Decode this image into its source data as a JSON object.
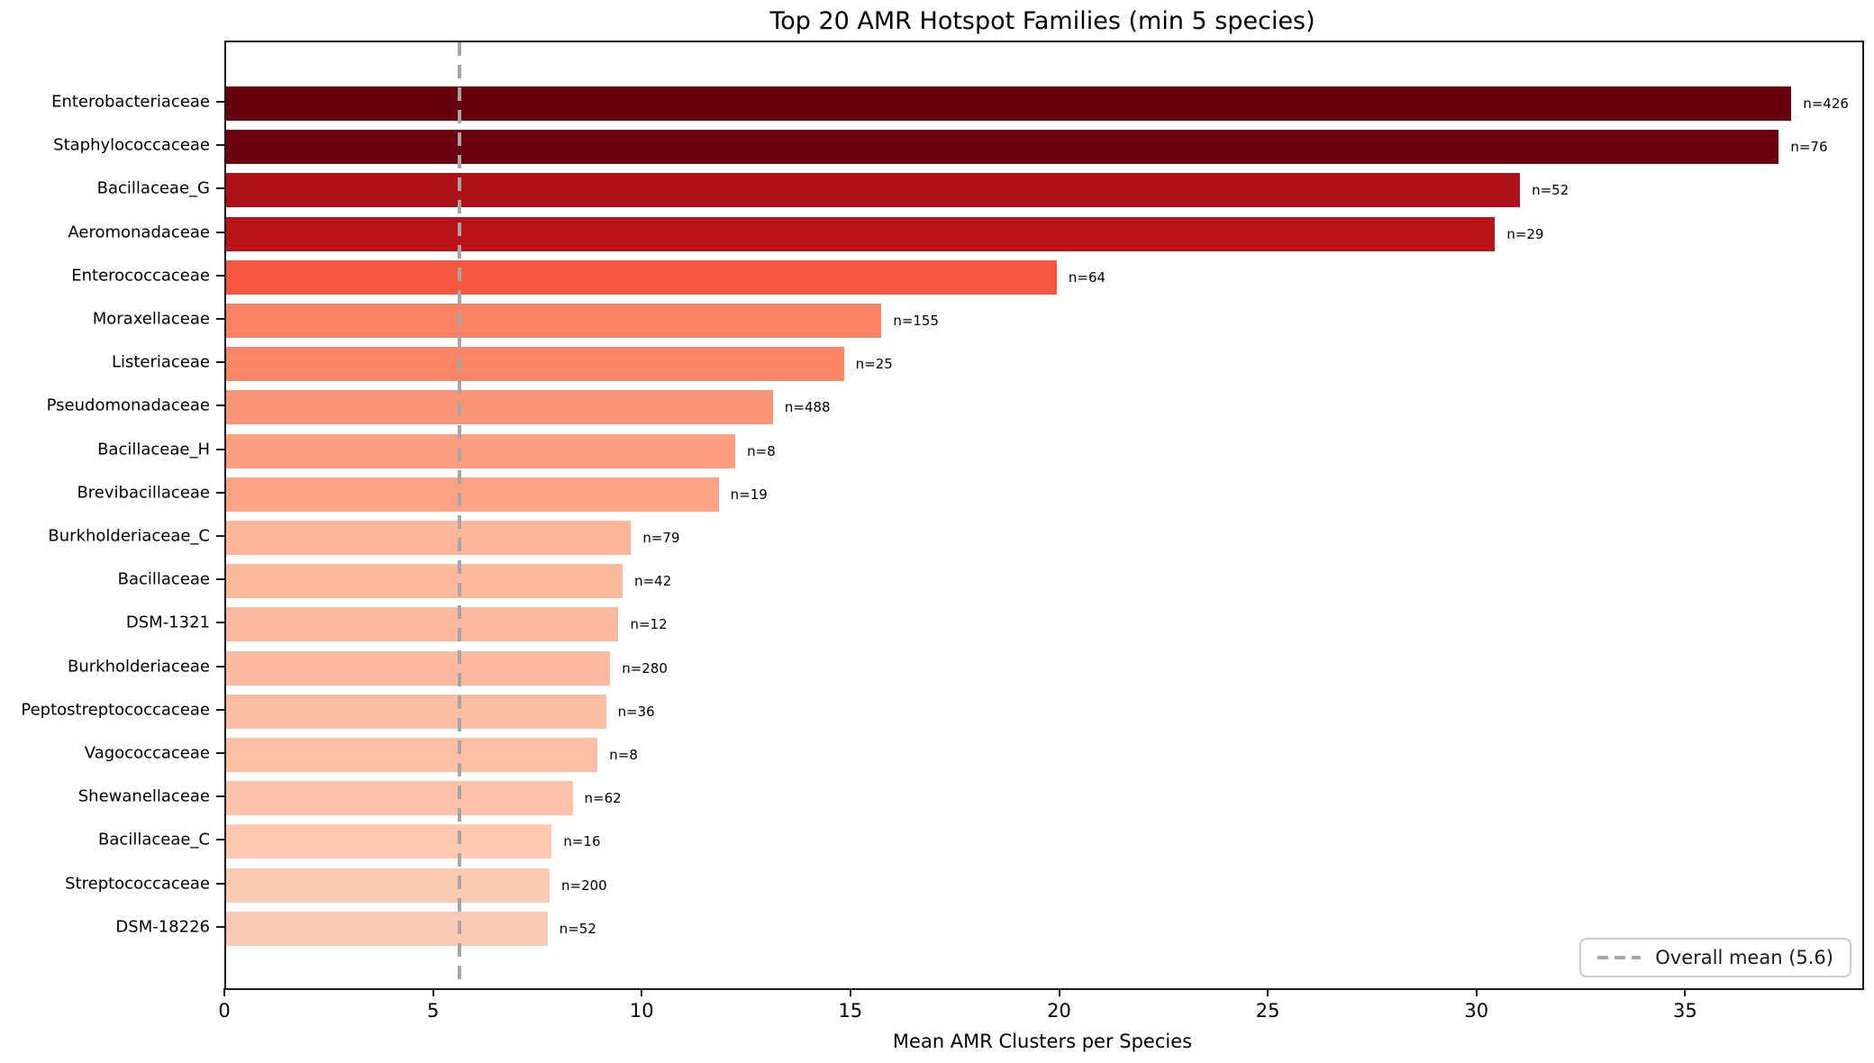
{
  "chart_data": {
    "type": "bar",
    "orientation": "horizontal",
    "title": "Top 20 AMR Hotspot Families (min 5 species)",
    "xlabel": "Mean AMR Clusters per Species",
    "ylabel": "",
    "xlim": [
      0,
      39.2
    ],
    "x_ticks": [
      0,
      5,
      10,
      15,
      20,
      25,
      30,
      35
    ],
    "grid": false,
    "legend_position": "lower right",
    "mean_line": {
      "value": 5.6,
      "label": "Overall mean (5.6)",
      "color": "#a6a6a6",
      "style": "dashed"
    },
    "bars": [
      {
        "family": "Enterobacteriaceae",
        "value": 37.5,
        "n_label": "n=426",
        "color": "#67000d"
      },
      {
        "family": "Staphylococcaceae",
        "value": 37.2,
        "n_label": "n=76",
        "color": "#6b000f"
      },
      {
        "family": "Bacillaceae_G",
        "value": 31.0,
        "n_label": "n=52",
        "color": "#b01118"
      },
      {
        "family": "Aeromonadaceae",
        "value": 30.4,
        "n_label": "n=29",
        "color": "#b71319"
      },
      {
        "family": "Enterococcaceae",
        "value": 19.9,
        "n_label": "n=64",
        "color": "#f6573e"
      },
      {
        "family": "Moraxellaceae",
        "value": 15.7,
        "n_label": "n=155",
        "color": "#fb8263"
      },
      {
        "family": "Listeriaceae",
        "value": 14.8,
        "n_label": "n=25",
        "color": "#fb8767"
      },
      {
        "family": "Pseudomonadaceae",
        "value": 13.1,
        "n_label": "n=488",
        "color": "#fc9576"
      },
      {
        "family": "Bacillaceae_H",
        "value": 12.2,
        "n_label": "n=8",
        "color": "#fc9e80"
      },
      {
        "family": "Brevibacillaceae",
        "value": 11.8,
        "n_label": "n=19",
        "color": "#fca285"
      },
      {
        "family": "Burkholderiaceae_C",
        "value": 9.7,
        "n_label": "n=79",
        "color": "#fcb69b"
      },
      {
        "family": "Bacillaceae",
        "value": 9.5,
        "n_label": "n=42",
        "color": "#fcb89d"
      },
      {
        "family": "DSM-1321",
        "value": 9.4,
        "n_label": "n=12",
        "color": "#fcb99f"
      },
      {
        "family": "Burkholderiaceae",
        "value": 9.2,
        "n_label": "n=280",
        "color": "#fcbba1"
      },
      {
        "family": "Peptostreptococcaceae",
        "value": 9.1,
        "n_label": "n=36",
        "color": "#fcbca2"
      },
      {
        "family": "Vagococcaceae",
        "value": 8.9,
        "n_label": "n=8",
        "color": "#fcbfa5"
      },
      {
        "family": "Shewanellaceae",
        "value": 8.3,
        "n_label": "n=62",
        "color": "#fcc2a9"
      },
      {
        "family": "Bacillaceae_C",
        "value": 7.8,
        "n_label": "n=16",
        "color": "#fcc8b0"
      },
      {
        "family": "Streptococcaceae",
        "value": 7.75,
        "n_label": "n=200",
        "color": "#fcc9b1"
      },
      {
        "family": "DSM-18226",
        "value": 7.7,
        "n_label": "n=52",
        "color": "#fcc9b2"
      }
    ]
  }
}
